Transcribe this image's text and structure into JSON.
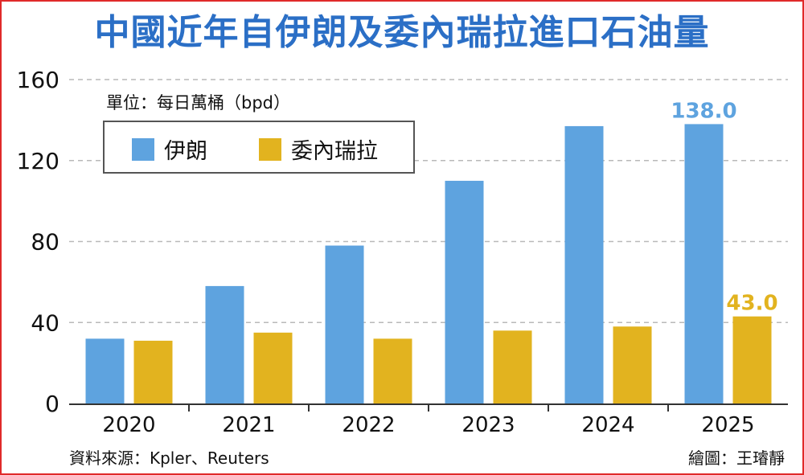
{
  "title": "中國近年自伊朗及委內瑞拉進口石油量",
  "unit_label": "單位：每日萬桶（bpd）",
  "source": "資料來源：Kpler、Reuters",
  "credit": "繪圖：王璿靜",
  "colors": {
    "iran": "#5ea3df",
    "venezuela": "#e2b31f",
    "title": "#2b6fc6",
    "frame": "#e02a2a"
  },
  "chart_data": {
    "type": "bar",
    "title": "中國近年自伊朗及委內瑞拉進口石油量",
    "categories": [
      "2020",
      "2021",
      "2022",
      "2023",
      "2024",
      "2025"
    ],
    "series": [
      {
        "name": "伊朗",
        "values": [
          32,
          58,
          78,
          110,
          137,
          138.0
        ]
      },
      {
        "name": "委內瑞拉",
        "values": [
          31,
          35,
          32,
          36,
          38,
          43.0
        ]
      }
    ],
    "yticks": [
      "0",
      "40",
      "80",
      "120",
      "160"
    ],
    "ylim": [
      0,
      160
    ],
    "grid": true,
    "legend": "top-left",
    "annotations": [
      {
        "series": "伊朗",
        "category": "2025",
        "text": "138.0"
      },
      {
        "series": "委內瑞拉",
        "category": "2025",
        "text": "43.0"
      }
    ]
  }
}
